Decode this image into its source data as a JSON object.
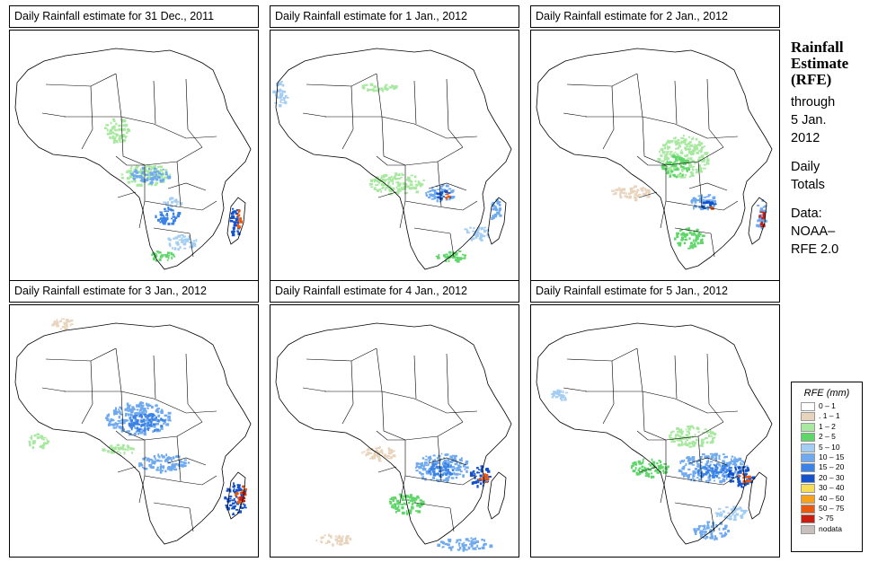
{
  "panels": [
    {
      "title": "Daily Rainfall estimate for  31 Dec., 2011"
    },
    {
      "title": "Daily Rainfall estimate for  1 Jan., 2012"
    },
    {
      "title": "Daily Rainfall estimate for  2 Jan., 2012"
    },
    {
      "title": "Daily Rainfall estimate for  3 Jan., 2012"
    },
    {
      "title": "Daily Rainfall estimate for  4 Jan., 2012"
    },
    {
      "title": "Daily Rainfall estimate for  5 Jan., 2012"
    }
  ],
  "side": {
    "title_lines": [
      "Rainfall",
      "Estimate",
      "(RFE)"
    ],
    "through_lines": [
      "through",
      "5 Jan.",
      "2012"
    ],
    "totals_lines": [
      "Daily",
      "Totals"
    ],
    "data_lines": [
      "Data:",
      "NOAA–",
      "RFE 2.0"
    ]
  },
  "legend": {
    "title": "RFE (mm)",
    "items": [
      {
        "label": "0 – 1",
        "color": "#ffffff"
      },
      {
        "label": ". 1 – 1",
        "color": "#e8d4bd"
      },
      {
        "label": "1 – 2",
        "color": "#a8e8a0"
      },
      {
        "label": "2 – 5",
        "color": "#5fd66a"
      },
      {
        "label": "5 – 10",
        "color": "#a3cdf2"
      },
      {
        "label": "10 – 15",
        "color": "#6fa9ee"
      },
      {
        "label": "15 – 20",
        "color": "#3b82e6"
      },
      {
        "label": "20 – 30",
        "color": "#1452cc"
      },
      {
        "label": "30 – 40",
        "color": "#f7dc55"
      },
      {
        "label": "40 – 50",
        "color": "#f6a21c"
      },
      {
        "label": "50 – 75",
        "color": "#e85a10"
      },
      {
        "label": "> 75",
        "color": "#c81e10"
      },
      {
        "label": "nodata",
        "color": "#c8c0bc"
      }
    ]
  }
}
